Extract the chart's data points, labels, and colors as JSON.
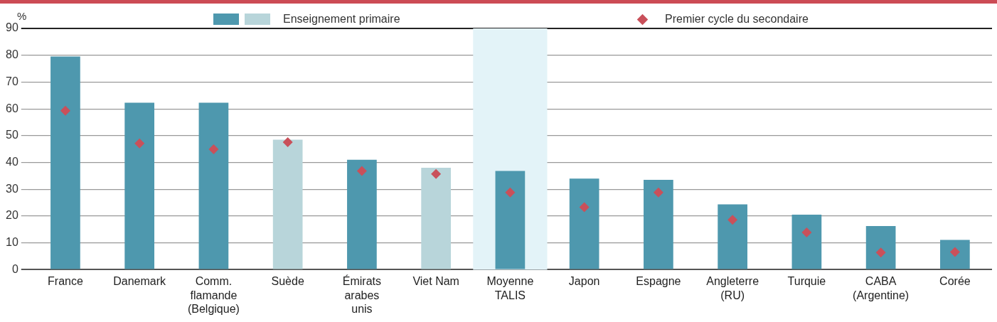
{
  "chart_data": {
    "type": "bar",
    "ylabel": "%",
    "categories": [
      "France",
      "Danemark",
      "Comm. flamande (Belgique)",
      "Suède",
      "Émirats arabes unis",
      "Viet Nam",
      "Moyenne TALIS",
      "Japon",
      "Espagne",
      "Angleterre (RU)",
      "Turquie",
      "CABA (Argentine)",
      "Corée"
    ],
    "series": [
      {
        "name": "Enseignement primaire",
        "colors": [
          "#4e98ae",
          "#4e98ae",
          "#4e98ae",
          "#b8d5da",
          "#4e98ae",
          "#b8d5da",
          "#4e98ae",
          "#4e98ae",
          "#4e98ae",
          "#4e98ae",
          "#4e98ae",
          "#4e98ae",
          "#4e98ae"
        ],
        "values": [
          79.5,
          62.3,
          62.3,
          48.5,
          41,
          38,
          36.8,
          34,
          33.5,
          24.4,
          20.5,
          16.3,
          11.1
        ]
      },
      {
        "name": "Premier cycle du secondaire",
        "type": "scatter",
        "color": "#c9505a",
        "marker": "diamond",
        "x": [
          "France",
          "Danemark",
          "Comm. flamande (Belgique)",
          "Suède",
          "Émirats arabes unis",
          "Viet Nam",
          "Moyenne TALIS",
          "Japon",
          "Espagne",
          "Angleterre (RU)",
          "Turquie",
          "CABA (Argentine)",
          "Corée"
        ],
        "values": [
          59.3,
          47.1,
          44.9,
          47.6,
          36.8,
          35.7,
          28.8,
          23.3,
          28.8,
          18.6,
          13.9,
          6.4,
          6.6
        ]
      }
    ],
    "ylim": [
      0,
      90
    ],
    "yticks": [
      0,
      10,
      20,
      30,
      40,
      50,
      60,
      70,
      80,
      90
    ],
    "grid": "y",
    "legend": "top",
    "bands": [
      {
        "axis": "x",
        "from": "Moyenne TALIS",
        "to": "Moyenne TALIS",
        "color": "#e3f3f8"
      }
    ]
  }
}
